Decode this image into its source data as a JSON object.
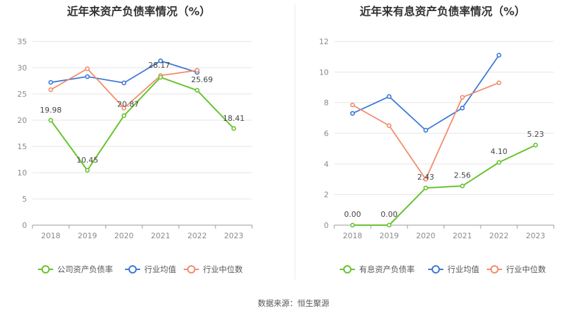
{
  "colors": {
    "company": "#66c32e",
    "avg": "#3c78d8",
    "median": "#f28c6a",
    "grid": "#e6e6e6",
    "axis": "#9a9a9a",
    "divider": "#e8e8e8"
  },
  "source_text": "数据来源：恒生聚源",
  "chart_data": [
    {
      "type": "line",
      "title": "近年来资产负债率情况（%）",
      "categories": [
        "2018",
        "2019",
        "2020",
        "2021",
        "2022",
        "2023"
      ],
      "ylim": [
        0,
        35
      ],
      "yticks": [
        0,
        5,
        10,
        15,
        20,
        25,
        30,
        35
      ],
      "grid": true,
      "legend_position": "bottom",
      "series": [
        {
          "name": "公司资产负债率",
          "color": "#66c32e",
          "values": [
            19.98,
            10.45,
            20.87,
            28.17,
            25.69,
            18.41
          ],
          "labels": [
            "19.98",
            "10.45",
            "20.87",
            "28.17",
            "25.69",
            "18.41"
          ],
          "legend_icon": "circle-icon"
        },
        {
          "name": "行业均值",
          "color": "#3c78d8",
          "values": [
            27.2,
            28.3,
            27.1,
            31.3,
            29.1,
            null
          ],
          "legend_icon": "circle-icon"
        },
        {
          "name": "行业中位数",
          "color": "#f28c6a",
          "values": [
            25.8,
            29.8,
            22.3,
            28.5,
            29.5,
            null
          ],
          "legend_icon": "circle-icon"
        }
      ]
    },
    {
      "type": "line",
      "title": "近年来有息资产负债率情况（%）",
      "categories": [
        "2018",
        "2019",
        "2020",
        "2021",
        "2022",
        "2023"
      ],
      "ylim": [
        0,
        12
      ],
      "yticks": [
        0,
        2,
        4,
        6,
        8,
        10,
        12
      ],
      "grid": true,
      "legend_position": "bottom",
      "series": [
        {
          "name": "有息资产负债率",
          "color": "#66c32e",
          "values": [
            0.0,
            0.0,
            2.43,
            2.56,
            4.1,
            5.23
          ],
          "labels": [
            "0.00",
            "0.00",
            "2.43",
            "2.56",
            "4.10",
            "5.23"
          ],
          "legend_icon": "circle-icon"
        },
        {
          "name": "行业均值",
          "color": "#3c78d8",
          "values": [
            7.3,
            8.4,
            6.2,
            7.65,
            11.1,
            null
          ],
          "legend_icon": "circle-icon"
        },
        {
          "name": "行业中位数",
          "color": "#f28c6a",
          "values": [
            7.85,
            6.5,
            3.0,
            8.35,
            9.3,
            null
          ],
          "legend_icon": "circle-icon"
        }
      ]
    }
  ]
}
